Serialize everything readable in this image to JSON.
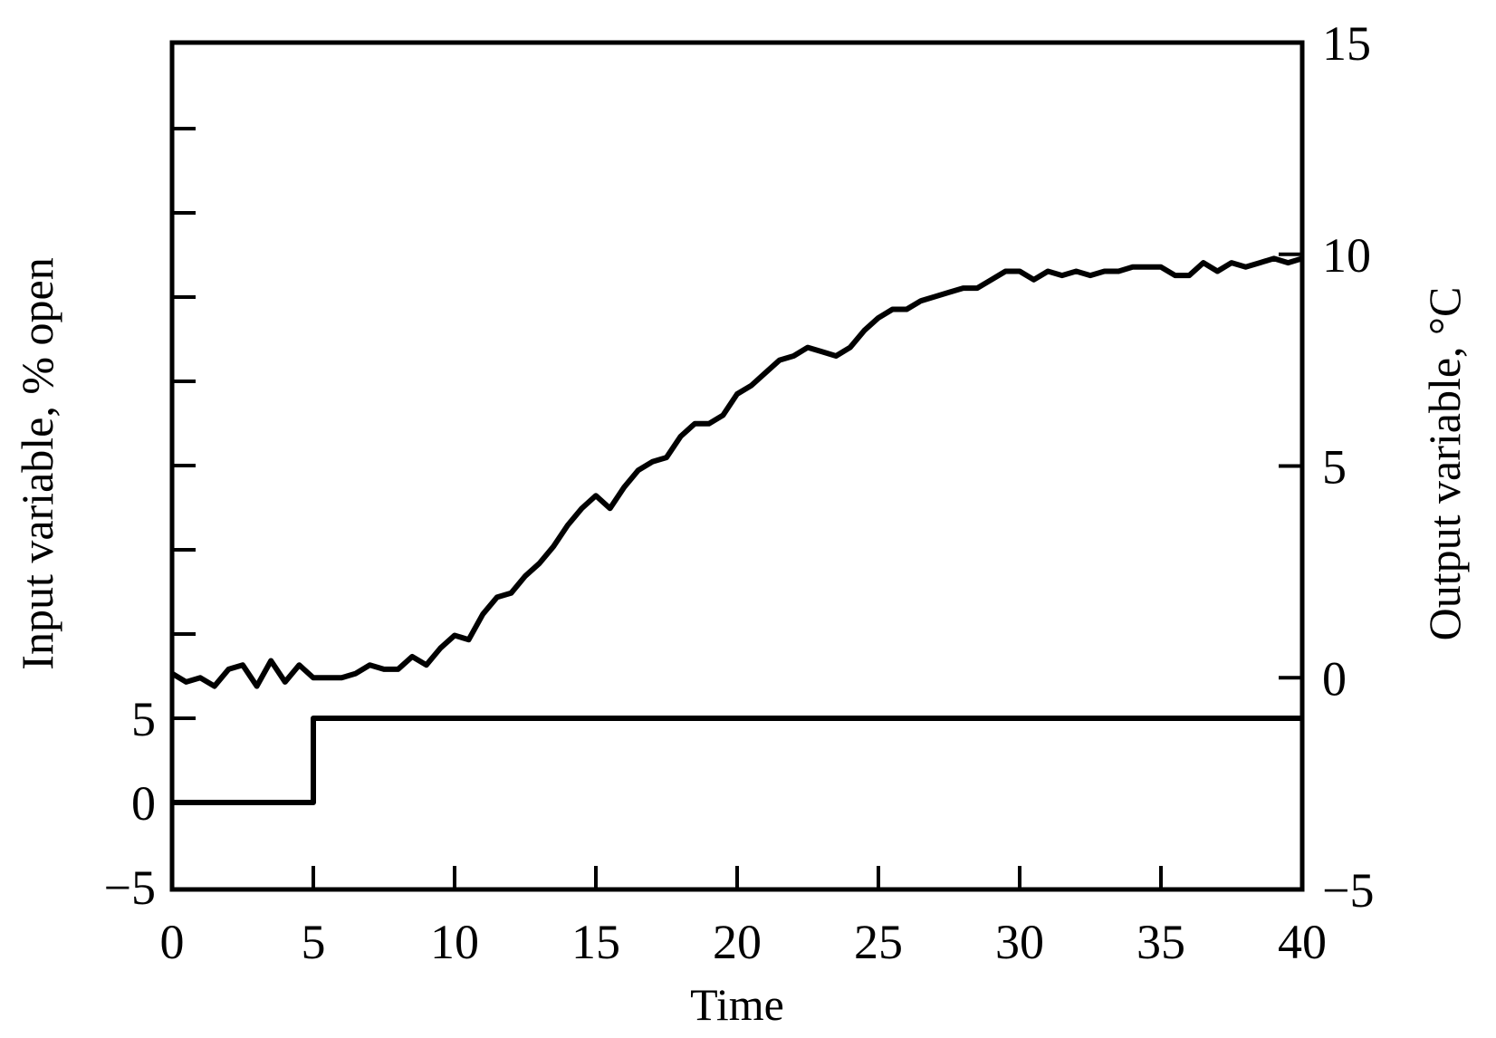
{
  "chart_data": {
    "type": "line",
    "xlabel": "Time",
    "ylabel_left": "Input variable, % open",
    "ylabel_right": "Output variable, °C",
    "xlim": [
      0,
      40
    ],
    "ylim_left": [
      -5,
      5
    ],
    "ylim_right": [
      -5,
      15
    ],
    "x_ticks": [
      "0",
      "5",
      "10",
      "15",
      "20",
      "25",
      "30",
      "35",
      "40"
    ],
    "left_ticks": [
      "-5",
      "0",
      "5"
    ],
    "right_ticks": [
      "-5",
      "0",
      "5",
      "10",
      "15"
    ],
    "grid": false,
    "series": [
      {
        "axis": "left",
        "x": [
          0,
          5,
          5,
          40
        ],
        "y": [
          0,
          0,
          5,
          5
        ]
      },
      {
        "axis": "right",
        "x": [
          0,
          0.5,
          1,
          1.5,
          2,
          2.5,
          3,
          3.5,
          4,
          4.5,
          5,
          5.5,
          6,
          6.5,
          7,
          7.5,
          8,
          8.5,
          9,
          9.5,
          10,
          10.5,
          11,
          11.5,
          12,
          12.5,
          13,
          13.5,
          14,
          14.5,
          15,
          15.5,
          16,
          16.5,
          17,
          17.5,
          18,
          18.5,
          19,
          19.5,
          20,
          20.5,
          21,
          21.5,
          22,
          22.5,
          23,
          23.5,
          24,
          24.5,
          25,
          25.5,
          26,
          26.5,
          27,
          27.5,
          28,
          28.5,
          29,
          29.5,
          30,
          30.5,
          31,
          31.5,
          32,
          32.5,
          33,
          33.5,
          34,
          34.5,
          35,
          35.5,
          36,
          36.5,
          37,
          37.5,
          38,
          38.5,
          39,
          39.5,
          40
        ],
        "y": [
          0.1,
          -0.1,
          0.0,
          -0.2,
          0.2,
          0.3,
          -0.2,
          0.4,
          -0.1,
          0.3,
          0.0,
          0.0,
          0.0,
          0.1,
          0.3,
          0.2,
          0.2,
          0.5,
          0.3,
          0.7,
          1.0,
          0.9,
          1.5,
          1.9,
          2.0,
          2.4,
          2.7,
          3.1,
          3.6,
          4.0,
          4.3,
          4.0,
          4.5,
          4.9,
          5.1,
          5.2,
          5.7,
          6.0,
          6.0,
          6.2,
          6.7,
          6.9,
          7.2,
          7.5,
          7.6,
          7.8,
          7.7,
          7.6,
          7.8,
          8.2,
          8.5,
          8.7,
          8.7,
          8.9,
          9.0,
          9.1,
          9.2,
          9.2,
          9.4,
          9.6,
          9.6,
          9.4,
          9.6,
          9.5,
          9.6,
          9.5,
          9.6,
          9.6,
          9.7,
          9.7,
          9.7,
          9.5,
          9.5,
          9.8,
          9.6,
          9.8,
          9.7,
          9.8,
          9.9,
          9.8,
          9.9
        ]
      }
    ]
  }
}
